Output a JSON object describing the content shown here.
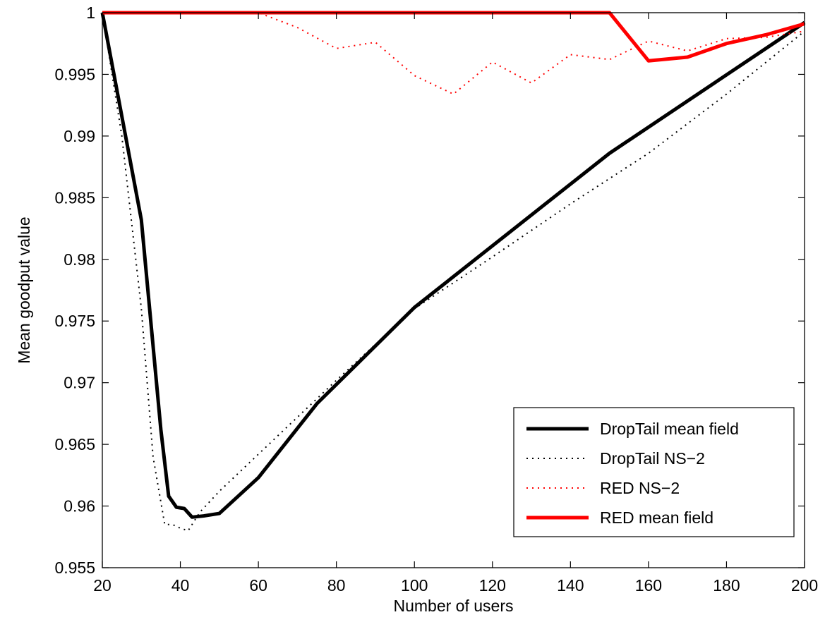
{
  "chart_data": {
    "type": "line",
    "title": "",
    "xlabel": "Number of users",
    "ylabel": "Mean goodput value",
    "xlim": [
      20,
      200
    ],
    "ylim": [
      0.955,
      1
    ],
    "xticks": [
      20,
      40,
      60,
      80,
      100,
      120,
      140,
      160,
      180,
      200
    ],
    "xtick_labels": [
      "20",
      "40",
      "60",
      "80",
      "100",
      "120",
      "140",
      "160",
      "180",
      "200"
    ],
    "yticks": [
      0.955,
      0.96,
      0.965,
      0.97,
      0.975,
      0.98,
      0.985,
      0.99,
      0.995,
      1
    ],
    "ytick_labels": [
      "0.955",
      "0.96",
      "0.965",
      "0.97",
      "0.975",
      "0.98",
      "0.985",
      "0.99",
      "0.995",
      "1"
    ],
    "grid": false,
    "legend_position": "bottom-right",
    "series": [
      {
        "name": "DropTail mean field",
        "color": "#000000",
        "style": "solid",
        "x": [
          20,
          30,
          35,
          37,
          39,
          41,
          43,
          46,
          50,
          60,
          75,
          100,
          150,
          200
        ],
        "y": [
          1.0,
          0.9832,
          0.9662,
          0.9608,
          0.9599,
          0.9598,
          0.9591,
          0.9592,
          0.9594,
          0.9623,
          0.9683,
          0.9761,
          0.9886,
          0.9992
        ]
      },
      {
        "name": "DropTail NS−2",
        "color": "#000000",
        "style": "dotted",
        "x": [
          20,
          25,
          30,
          33,
          36,
          38,
          40,
          42,
          45,
          50,
          60,
          80,
          100,
          120,
          140,
          160,
          180,
          200
        ],
        "y": [
          1.0,
          0.99,
          0.976,
          0.964,
          0.9585,
          0.9585,
          0.9582,
          0.958,
          0.9595,
          0.9612,
          0.9642,
          0.9702,
          0.976,
          0.9802,
          0.9845,
          0.9886,
          0.9934,
          0.9985
        ]
      },
      {
        "name": "RED NS−2",
        "color": "#ff0000",
        "style": "dotted",
        "x": [
          20,
          40,
          60,
          70,
          80,
          90,
          100,
          110,
          120,
          130,
          140,
          150,
          160,
          170,
          180,
          190,
          200
        ],
        "y": [
          1.0,
          1.0,
          1.0,
          0.9988,
          0.9971,
          0.9976,
          0.9949,
          0.9934,
          0.996,
          0.9943,
          0.9966,
          0.9962,
          0.9977,
          0.9969,
          0.9979,
          0.998,
          0.9985
        ]
      },
      {
        "name": "RED mean field",
        "color": "#ff0000",
        "style": "solid",
        "x": [
          20,
          150,
          160,
          170,
          180,
          190,
          200
        ],
        "y": [
          1.0,
          1.0,
          0.9961,
          0.9964,
          0.9975,
          0.9982,
          0.9991
        ]
      }
    ]
  }
}
